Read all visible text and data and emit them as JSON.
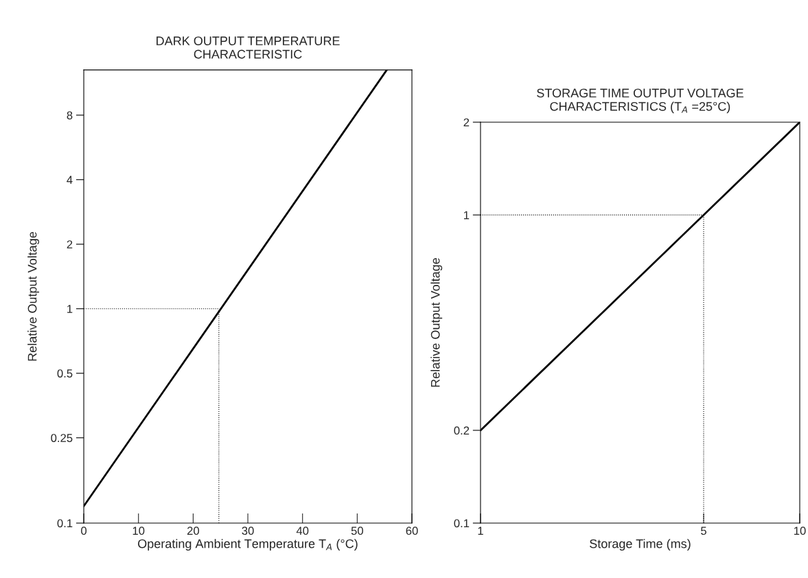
{
  "chart_data": [
    {
      "type": "line",
      "title": "DARK OUTPUT TEMPERATURE\nCHARACTERISTIC",
      "xlabel": "Operating Ambient Temperature T$_{A}$ (°C)",
      "ylabel": "Relative Output Voltage",
      "log": "y",
      "grid": false,
      "legend": false,
      "xlim": [
        0,
        60
      ],
      "xticks": [
        0,
        10,
        20,
        30,
        40,
        50,
        60
      ],
      "ylim": [
        0.1,
        13
      ],
      "yticks": [
        0.1,
        0.25,
        0.5,
        1,
        2,
        4,
        8
      ],
      "series": [
        {
          "x": [
            0,
            55.4
          ],
          "values": [
            0.12,
            13
          ],
          "color": "#000000",
          "line_style": "solid"
        },
        {
          "x": [
            0,
            24.7
          ],
          "values": [
            1,
            1
          ],
          "color": "#000000",
          "line_style": "dotted"
        },
        {
          "x": [
            24.7,
            24.7
          ],
          "values": [
            0.1,
            1
          ],
          "color": "#000000",
          "line_style": "dotted"
        }
      ]
    },
    {
      "type": "line",
      "title": "STORAGE TIME OUTPUT VOLTAGE\nCHARACTERISTICS (T$_{A}$ =25°C)",
      "xlabel": "Storage Time (ms)",
      "ylabel": "Relative Output Voltage",
      "log": "xy",
      "grid": false,
      "legend": false,
      "xlim": [
        1,
        10
      ],
      "xticks": [
        1,
        5,
        10
      ],
      "ylim": [
        0.1,
        2
      ],
      "yticks": [
        0.1,
        0.2,
        1,
        2
      ],
      "series": [
        {
          "x": [
            1,
            10
          ],
          "values": [
            0.2,
            2
          ],
          "color": "#000000",
          "line_style": "solid"
        },
        {
          "x": [
            1,
            5
          ],
          "values": [
            1,
            1
          ],
          "color": "#000000",
          "line_style": "dotted"
        },
        {
          "x": [
            5,
            5
          ],
          "values": [
            0.1,
            1
          ],
          "color": "#000000",
          "line_style": "dotted"
        }
      ]
    }
  ]
}
